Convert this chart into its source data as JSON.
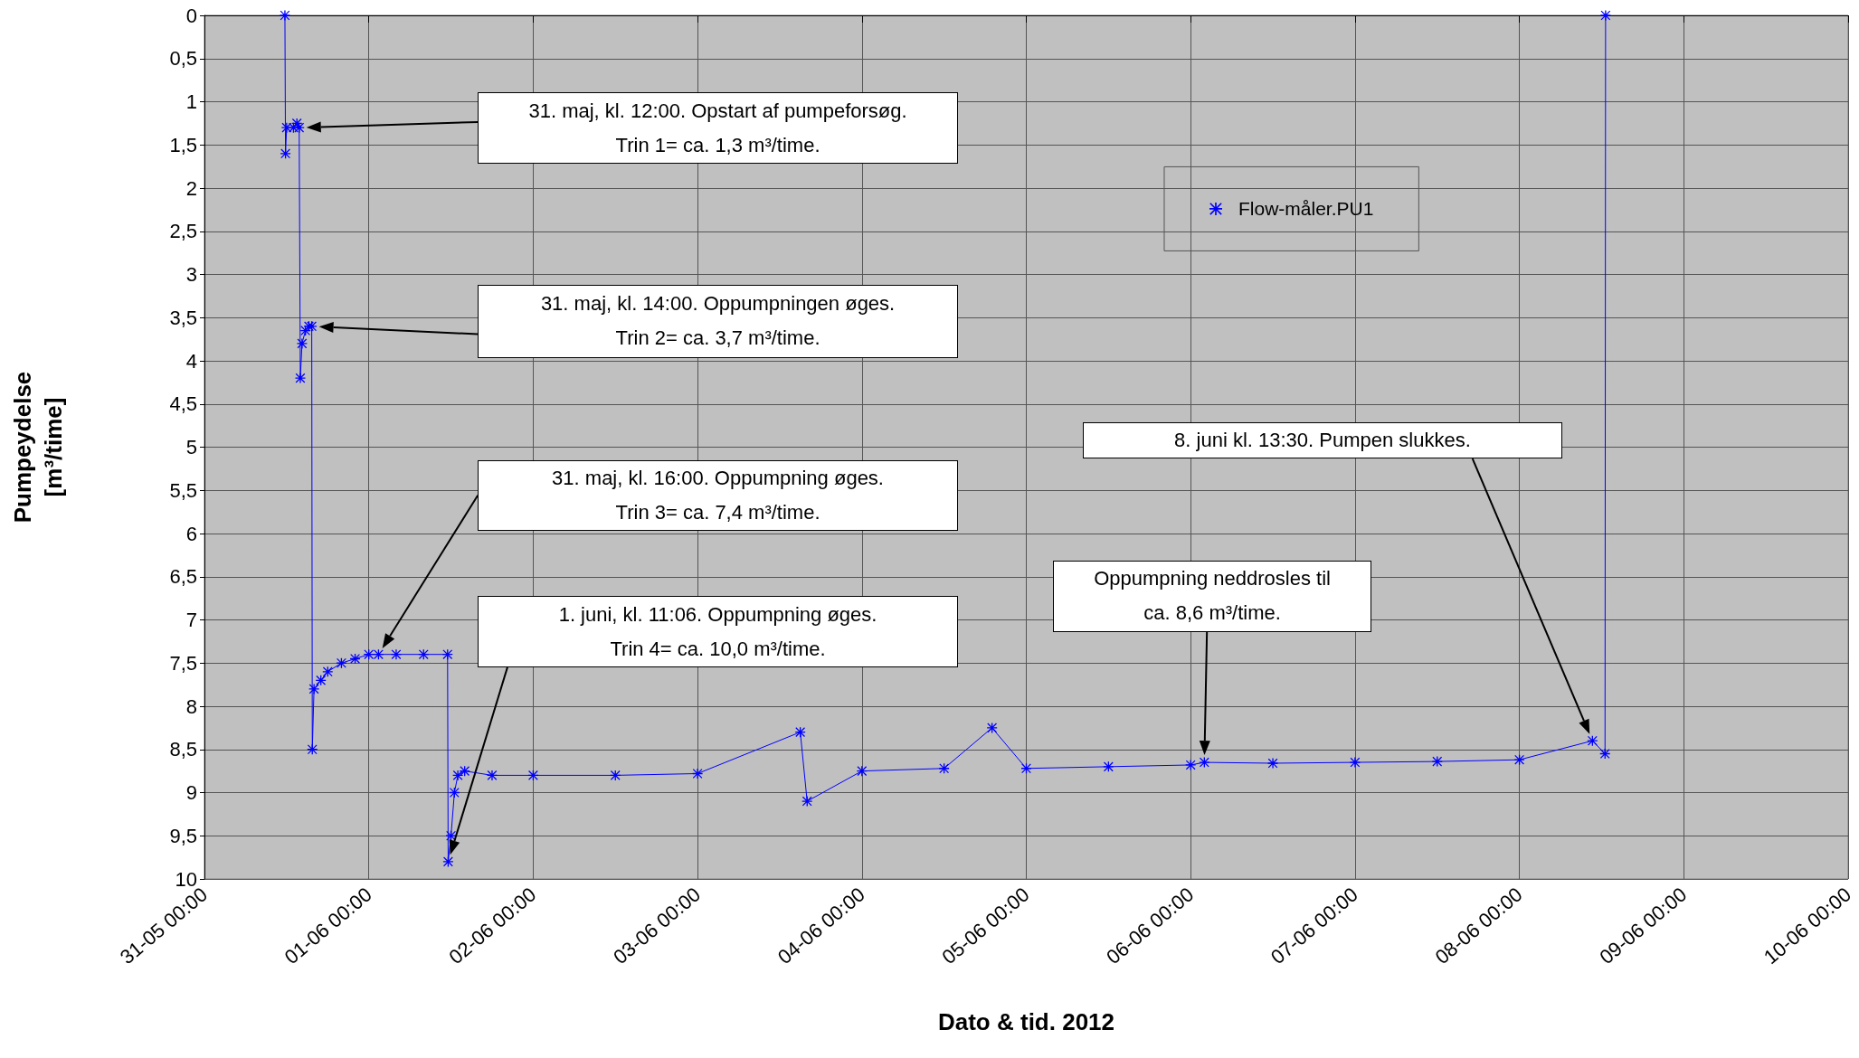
{
  "chart_data": {
    "type": "line",
    "xlabel": "Dato & tid. 2012",
    "ylabel": "Pumpeydelse\n[m³/time]",
    "x": [
      "2012-05-31T11:45",
      "2012-05-31T11:50",
      "2012-05-31T12:00",
      "2012-05-31T12:30",
      "2012-05-31T13:00",
      "2012-05-31T13:30",
      "2012-05-31T13:50",
      "2012-05-31T14:00",
      "2012-05-31T14:15",
      "2012-05-31T14:45",
      "2012-05-31T15:15",
      "2012-05-31T15:40",
      "2012-05-31T15:45",
      "2012-05-31T16:00",
      "2012-05-31T17:00",
      "2012-05-31T18:00",
      "2012-05-31T20:00",
      "2012-05-31T22:00",
      "2012-06-01T00:00",
      "2012-06-01T01:25",
      "2012-06-01T04:00",
      "2012-06-01T08:00",
      "2012-06-01T11:30",
      "2012-06-01T11:35",
      "2012-06-01T12:00",
      "2012-06-01T12:30",
      "2012-06-01T13:00",
      "2012-06-01T14:00",
      "2012-06-01T18:00",
      "2012-06-02T00:00",
      "2012-06-02T12:00",
      "2012-06-03T00:00",
      "2012-06-03T15:00",
      "2012-06-03T16:00",
      "2012-06-04T00:00",
      "2012-06-04T12:00",
      "2012-06-04T19:00",
      "2012-06-05T00:00",
      "2012-06-05T12:00",
      "2012-06-06T00:00",
      "2012-06-06T02:00",
      "2012-06-06T12:00",
      "2012-06-07T00:00",
      "2012-06-07T12:00",
      "2012-06-08T00:00",
      "2012-06-08T10:40",
      "2012-06-08T12:30",
      "2012-06-08T12:35"
    ],
    "series": [
      {
        "name": "Flow-måler.PU1",
        "color": "#0000ff",
        "values": [
          0,
          1.6,
          1.3,
          null,
          1.3,
          1.25,
          1.3,
          4.2,
          3.8,
          3.65,
          3.6,
          3.6,
          8.5,
          7.8,
          7.7,
          7.6,
          7.5,
          7.45,
          7.4,
          7.4,
          7.4,
          7.4,
          7.4,
          9.8,
          9.5,
          9,
          8.8,
          8.75,
          8.8,
          8.8,
          8.8,
          8.78,
          8.3,
          9.1,
          8.75,
          8.72,
          8.25,
          8.72,
          8.7,
          8.68,
          8.65,
          8.66,
          8.65,
          8.64,
          8.62,
          8.4,
          8.55,
          0
        ]
      }
    ],
    "xlim": [
      "2012-05-31T00:00",
      "2012-06-10T00:00"
    ],
    "xticks": [
      {
        "value": "2012-05-31T00:00",
        "label": "31-05 00:00"
      },
      {
        "value": "2012-06-01T00:00",
        "label": "01-06 00:00"
      },
      {
        "value": "2012-06-02T00:00",
        "label": "02-06 00:00"
      },
      {
        "value": "2012-06-03T00:00",
        "label": "03-06 00:00"
      },
      {
        "value": "2012-06-04T00:00",
        "label": "04-06 00:00"
      },
      {
        "value": "2012-06-05T00:00",
        "label": "05-06 00:00"
      },
      {
        "value": "2012-06-06T00:00",
        "label": "06-06 00:00"
      },
      {
        "value": "2012-06-07T00:00",
        "label": "07-06 00:00"
      },
      {
        "value": "2012-06-08T00:00",
        "label": "08-06 00:00"
      },
      {
        "value": "2012-06-09T00:00",
        "label": "09-06 00:00"
      },
      {
        "value": "2012-06-10T00:00",
        "label": "10-06 00:00"
      }
    ],
    "ylim": [
      10,
      0
    ],
    "yticks": [
      0,
      {
        "value": 0.5,
        "label": "0,5"
      },
      1,
      {
        "value": 1.5,
        "label": "1,5"
      },
      2,
      {
        "value": 2.5,
        "label": "2,5"
      },
      3,
      {
        "value": 3.5,
        "label": "3,5"
      },
      4,
      {
        "value": 4.5,
        "label": "4,5"
      },
      5,
      {
        "value": 5.5,
        "label": "5,5"
      },
      6,
      {
        "value": 6.5,
        "label": "6,5"
      },
      7,
      {
        "value": 7.5,
        "label": "7,5"
      },
      8,
      {
        "value": 8.5,
        "label": "8,5"
      },
      9,
      {
        "value": 9.5,
        "label": "9,5"
      },
      10
    ],
    "annotations": [
      "31. maj, kl. 12:00. Opstart af pumpeforsøg.\nTrin 1= ca. 1,3 m³/time.",
      "31. maj, kl. 14:00. Oppumpningen øges.\nTrin 2= ca. 3,7 m³/time.",
      "31. maj, kl. 16:00. Oppumpning øges.\nTrin 3= ca. 7,4 m³/time.",
      "1. juni, kl. 11:06. Oppumpning øges.\nTrin 4= ca. 10,0 m³/time.",
      "Oppumpning neddrosles til\nca. 8,6 m³/time.",
      "8. juni kl. 13:30. Pumpen slukkes."
    ],
    "grid": true,
    "legend": "top right",
    "marker": "star",
    "line_style": "solid"
  }
}
